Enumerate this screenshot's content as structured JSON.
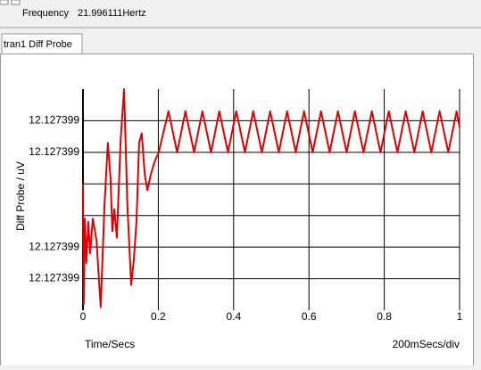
{
  "header": {
    "frequency_label": "Frequency",
    "frequency_value": "21.996111Hertz"
  },
  "tab": "tran1 Diff Probe",
  "chart_data": {
    "type": "line",
    "y_label": "Diff Probe / uV",
    "x_label": "Time/Secs",
    "x_scale_label": "200mSecs/div",
    "xlim": [
      0,
      1
    ],
    "xticks": [
      0,
      0.2,
      0.4,
      0.6,
      0.8,
      1
    ],
    "ylim": [
      12.1273988,
      12.1273995
    ],
    "yticks": [
      {
        "value": 12.1273994,
        "label": "12.127399"
      },
      {
        "value": 12.1273993,
        "label": "12.127399"
      },
      {
        "value": 12.1273992,
        "label": null
      },
      {
        "value": 12.1273991,
        "label": null
      },
      {
        "value": 12.127399,
        "label": "12.127399"
      },
      {
        "value": 12.1273989,
        "label": "12.127399"
      }
    ],
    "grid": true,
    "series": [
      {
        "color": "#e00000",
        "x": [
          0,
          0.002,
          0.005,
          0.009,
          0.014,
          0.019,
          0.026,
          0.036,
          0.047,
          0.057,
          0.066,
          0.073,
          0.078,
          0.083,
          0.09,
          0.1,
          0.109,
          0.118,
          0.128,
          0.135,
          0.142,
          0.149,
          0.156,
          0.164,
          0.171,
          0.18,
          0.19,
          0.201,
          0.213,
          0.227,
          0.25,
          0.272,
          0.295,
          0.317,
          0.34,
          0.362,
          0.385,
          0.407,
          0.43,
          0.452,
          0.475,
          0.497,
          0.52,
          0.542,
          0.565,
          0.587,
          0.61,
          0.632,
          0.655,
          0.677,
          0.7,
          0.722,
          0.745,
          0.767,
          0.79,
          0.812,
          0.835,
          0.857,
          0.88,
          0.902,
          0.925,
          0.947,
          0.97,
          0.992,
          1
        ],
        "values": [
          12.1273992,
          12.12739882,
          12.12739909,
          12.12739895,
          12.12739908,
          12.12739898,
          12.12739909,
          12.12739902,
          12.12739881,
          12.12739913,
          12.12739933,
          12.12739922,
          12.12739905,
          12.12739912,
          12.12739903,
          12.12739934,
          12.1273995,
          12.12739913,
          12.12739888,
          12.12739896,
          12.12739908,
          12.12739933,
          12.12739936,
          12.12739923,
          12.12739918,
          12.12739923,
          12.12739927,
          12.1273993,
          12.12739936,
          12.12739943,
          12.1273993,
          12.12739943,
          12.1273993,
          12.12739943,
          12.1273993,
          12.12739943,
          12.1273993,
          12.12739943,
          12.1273993,
          12.12739943,
          12.1273993,
          12.12739943,
          12.1273993,
          12.12739943,
          12.1273993,
          12.12739943,
          12.1273993,
          12.12739943,
          12.1273993,
          12.12739943,
          12.1273993,
          12.12739943,
          12.1273993,
          12.12739943,
          12.1273993,
          12.12739943,
          12.1273993,
          12.12739943,
          12.1273993,
          12.12739943,
          12.1273993,
          12.12739943,
          12.1273993,
          12.12739943,
          12.12739938
        ]
      }
    ]
  }
}
